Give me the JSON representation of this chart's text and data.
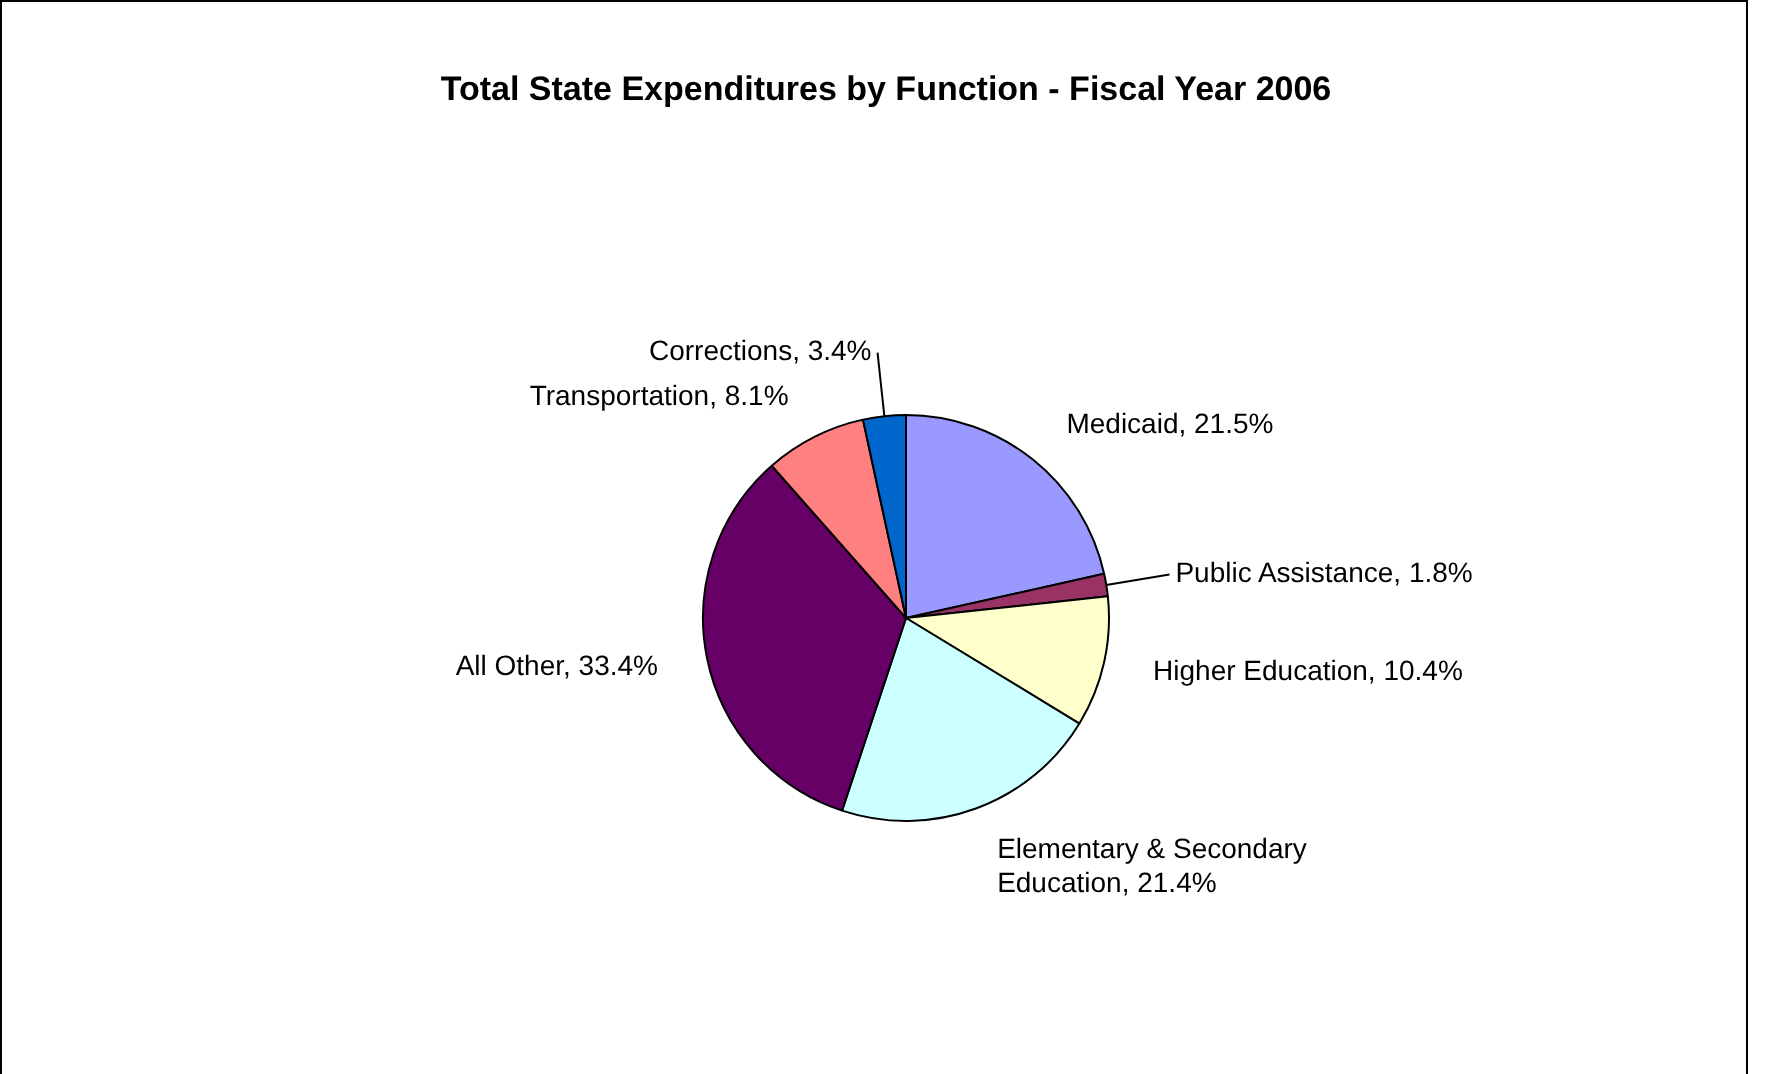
{
  "chart_data": {
    "type": "pie",
    "title": "Total State Expenditures by Function - Fiscal Year 2006",
    "categories": [
      "Medicaid",
      "Public Assistance",
      "Higher Education",
      "Elementary & Secondary Education",
      "All Other",
      "Transportation",
      "Corrections"
    ],
    "values": [
      21.5,
      1.8,
      10.4,
      21.4,
      33.4,
      8.1,
      3.4
    ],
    "colors": [
      "#9999ff",
      "#993366",
      "#ffffcc",
      "#ccffff",
      "#660066",
      "#ff8080",
      "#0066cc"
    ],
    "value_labels": [
      "21.5%",
      "1.8%",
      "10.4%",
      "21.4%",
      "33.4%",
      "8.1%",
      "3.4%"
    ],
    "legend": false
  }
}
